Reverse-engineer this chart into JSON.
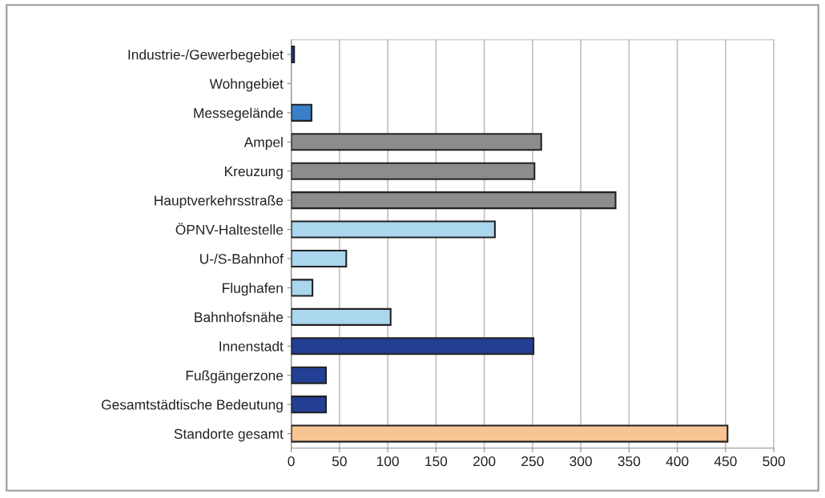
{
  "chart_data": {
    "type": "bar",
    "orientation": "horizontal",
    "categories": [
      "Industrie-/Gewerbegebiet",
      "Wohngebiet",
      "Messegelände",
      "Ampel",
      "Kreuzung",
      "Hauptverkehrsstraße",
      "ÖPNV-Haltestelle",
      "U-/S-Bahnhof",
      "Flughafen",
      "Bahnhofsnähe",
      "Innenstadt",
      "Fußgängerzone",
      "Gesamtstädtische Bedeutung",
      "Standorte gesamt"
    ],
    "values": [
      3,
      0,
      21,
      259,
      252,
      336,
      211,
      57,
      22,
      103,
      251,
      36,
      36,
      452
    ],
    "colors": [
      "#1f3a8a",
      null,
      "#3a7fc8",
      "#8c8c8c",
      "#8c8c8c",
      "#8c8c8c",
      "#aad6ee",
      "#aad6ee",
      "#aad6ee",
      "#aad6ee",
      "#223f94",
      "#223f94",
      "#223f94",
      "#f8c493"
    ],
    "xlim": [
      0,
      500
    ],
    "xticks": [
      0,
      50,
      100,
      150,
      200,
      250,
      300,
      350,
      400,
      450,
      500
    ],
    "grid": "x",
    "legend": false
  }
}
